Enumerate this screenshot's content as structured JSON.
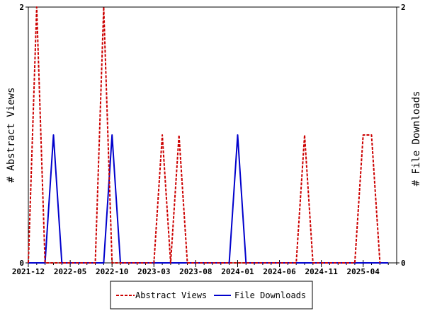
{
  "chart_data": {
    "type": "line",
    "title": "",
    "ylabel_left": "# Abstract Views",
    "ylabel_right": "# File Downloads",
    "ylim": [
      0,
      2
    ],
    "y_ticks_left": [
      "0",
      "2"
    ],
    "y_ticks_right": [
      "0",
      "2"
    ],
    "x_ticks": [
      "2021-12",
      "2022-05",
      "2022-10",
      "2023-03",
      "2023-08",
      "2024-01",
      "2024-06",
      "2024-11",
      "2025-04"
    ],
    "x_range": [
      "2021-12",
      "2025-08"
    ],
    "legend_placement": "bottom",
    "grid": false,
    "series": [
      {
        "name": "Abstract Views",
        "axis": "left",
        "color": "#cc0000",
        "style": "dashed",
        "points": [
          [
            "2021-12",
            0
          ],
          [
            "2022-01",
            2
          ],
          [
            "2022-02",
            0
          ],
          [
            "2022-08",
            0
          ],
          [
            "2022-09",
            2
          ],
          [
            "2022-10",
            0
          ],
          [
            "2023-03",
            0
          ],
          [
            "2023-04",
            1
          ],
          [
            "2023-05",
            0
          ],
          [
            "2023-06",
            1
          ],
          [
            "2023-07",
            0
          ],
          [
            "2024-08",
            0
          ],
          [
            "2024-09",
            1
          ],
          [
            "2024-10",
            0
          ],
          [
            "2025-03",
            0
          ],
          [
            "2025-04",
            1
          ],
          [
            "2025-05",
            1
          ],
          [
            "2025-06",
            0
          ]
        ]
      },
      {
        "name": "File Downloads",
        "axis": "right",
        "color": "#0000cc",
        "style": "solid",
        "points": [
          [
            "2021-12",
            0
          ],
          [
            "2022-02",
            0
          ],
          [
            "2022-03",
            1
          ],
          [
            "2022-04",
            0
          ],
          [
            "2022-09",
            0
          ],
          [
            "2022-10",
            1
          ],
          [
            "2022-11",
            0
          ],
          [
            "2023-12",
            0
          ],
          [
            "2024-01",
            1
          ],
          [
            "2024-02",
            0
          ],
          [
            "2025-07",
            0
          ]
        ]
      }
    ]
  }
}
